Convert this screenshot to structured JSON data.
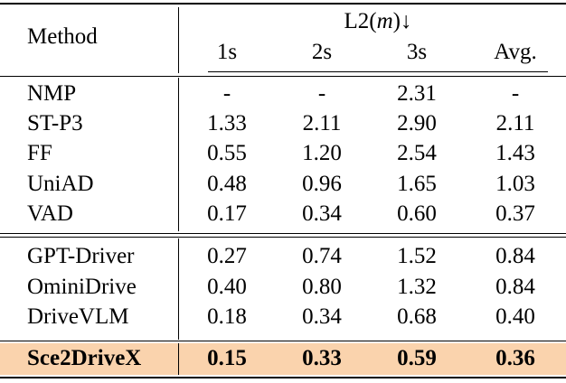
{
  "table": {
    "header": {
      "method": "Method",
      "group_prefix": "L2(",
      "group_var": "m",
      "group_suffix": ")↓",
      "cols": [
        "1s",
        "2s",
        "3s",
        "Avg."
      ]
    },
    "group1": [
      {
        "method": "NMP",
        "values": [
          "-",
          "-",
          "2.31",
          "-"
        ]
      },
      {
        "method": "ST-P3",
        "values": [
          "1.33",
          "2.11",
          "2.90",
          "2.11"
        ]
      },
      {
        "method": "FF",
        "values": [
          "0.55",
          "1.20",
          "2.54",
          "1.43"
        ]
      },
      {
        "method": "UniAD",
        "values": [
          "0.48",
          "0.96",
          "1.65",
          "1.03"
        ]
      },
      {
        "method": "VAD",
        "values": [
          "0.17",
          "0.34",
          "0.60",
          "0.37"
        ]
      }
    ],
    "group2": [
      {
        "method": "GPT-Driver",
        "values": [
          "0.27",
          "0.74",
          "1.52",
          "0.84"
        ]
      },
      {
        "method": "OminiDrive",
        "values": [
          "0.40",
          "0.80",
          "1.32",
          "0.84"
        ]
      },
      {
        "method": "DriveVLM",
        "values": [
          "0.18",
          "0.34",
          "0.68",
          "0.40"
        ]
      }
    ],
    "highlight": {
      "method": "Sce2DriveX",
      "values": [
        "0.15",
        "0.33",
        "0.59",
        "0.36"
      ],
      "color": "#fad3ad"
    }
  }
}
